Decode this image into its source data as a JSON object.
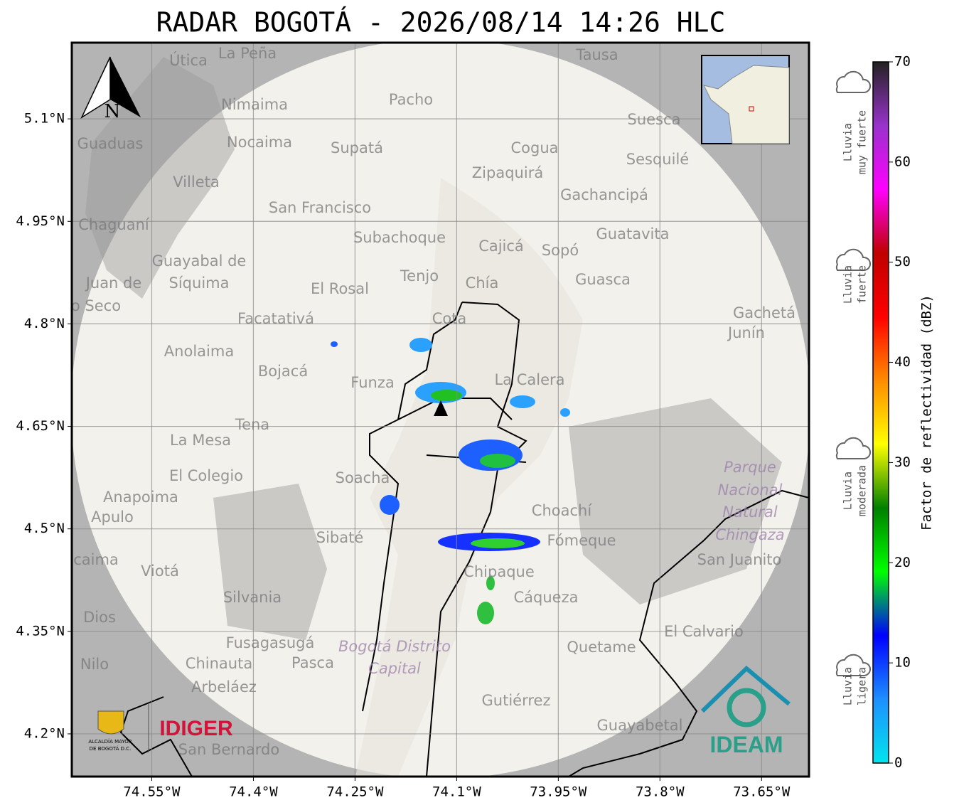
{
  "title": "RADAR BOGOTÁ - 2026/08/14 14:26 HLC",
  "map": {
    "xlim": [
      -74.668,
      -73.58
    ],
    "ylim": [
      4.1375,
      5.2115
    ],
    "xticks": [
      {
        "value": -74.55,
        "label": "74.55°W"
      },
      {
        "value": -74.4,
        "label": "74.4°W"
      },
      {
        "value": -74.25,
        "label": "74.25°W"
      },
      {
        "value": -74.1,
        "label": "74.1°W"
      },
      {
        "value": -73.95,
        "label": "73.95°W"
      },
      {
        "value": -73.8,
        "label": "73.8°W"
      },
      {
        "value": -73.65,
        "label": "73.65°W"
      }
    ],
    "yticks": [
      {
        "value": 5.1,
        "label": "5.1°N"
      },
      {
        "value": 4.95,
        "label": "4.95°N"
      },
      {
        "value": 4.8,
        "label": "4.8°N"
      },
      {
        "value": 4.65,
        "label": "4.65°N"
      },
      {
        "value": 4.5,
        "label": "4.5°N"
      },
      {
        "value": 4.35,
        "label": "4.35°N"
      },
      {
        "value": 4.2,
        "label": "4.2°N"
      }
    ],
    "grid": true,
    "north": "N",
    "places": [
      "La Peña",
      "Útica",
      "Tausa",
      "Pacho",
      "Nimaima",
      "Guaduas",
      "Nocaima",
      "Supatá",
      "Suesca",
      "Cogua",
      "Sesquilé",
      "Zipaquirá",
      "Villeta",
      "Gachancipá",
      "San Francisco",
      "Chaguaní",
      "Guatavita",
      "Subachoque",
      "Cajicá",
      "Sopó",
      "Guayabal de",
      "Síquima",
      "Tenjo",
      "Chía",
      "Guasca",
      "El Rosal",
      "Juan de",
      "o Seco",
      "Facatativá",
      "Cota",
      "Gachetá",
      "Junín",
      "Anolaima",
      "Bojacá",
      "Funza",
      "La Calera",
      "Tena",
      "La Mesa",
      "Parque",
      "Nacional",
      "Natural",
      "Chingaza",
      "El Colegio",
      "Soacha",
      "Anapoima",
      "Apulo",
      "Choachí",
      "Sibaté",
      "Fómeque",
      "San Juanito",
      "caima",
      "Viotá",
      "Chipaque",
      "Silvania",
      "Cáqueza",
      "Dios",
      "El Calvario",
      "Fusagasugá",
      "Bogotá Distrito",
      "Capital",
      "Quetame",
      "Nilo",
      "Chinauta",
      "Pasca",
      "Arbeláez",
      "Gutiérrez",
      "Guayabetal",
      "San Bernardo"
    ]
  },
  "colorbar": {
    "label": "Factor de reflectividad (dBZ)",
    "lim": [
      0,
      70
    ],
    "ticks": [
      0,
      10,
      20,
      30,
      40,
      50,
      60,
      70
    ],
    "colors": [
      "#00e5ee",
      "#1e90ff",
      "#0000ff",
      "#00ff00",
      "#008000",
      "#ffff00",
      "#ff8c00",
      "#ff0000",
      "#c00000",
      "#ff00ff",
      "#9932cc",
      "#222222"
    ],
    "categories": [
      {
        "lines": [
          "Lluvia",
          "muy fuerte"
        ]
      },
      {
        "lines": [
          "Lluvia",
          "fuerte"
        ]
      },
      {
        "lines": [
          "Lluvia",
          "moderada"
        ]
      },
      {
        "lines": [
          "Lluvia",
          "ligera"
        ]
      }
    ]
  },
  "logos": {
    "alcaldia": [
      "ALCALDÍA MAYOR",
      "DE BOGOTÁ D.C."
    ],
    "idiger": "IDIGER",
    "ideam": "IDEAM"
  }
}
